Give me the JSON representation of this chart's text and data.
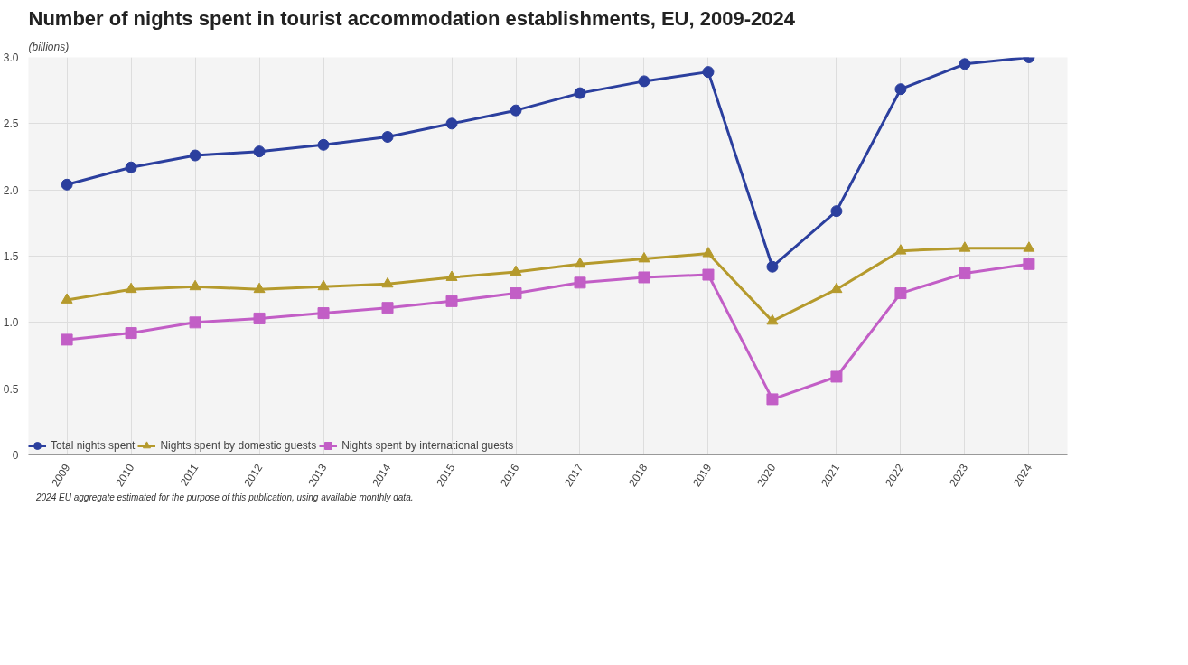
{
  "chart_data": {
    "type": "line",
    "title": "Number of nights spent in tourist accommodation establishments, EU, 2009-2024",
    "subtitle": "(billions)",
    "categories": [
      "2009",
      "2010",
      "2011",
      "2012",
      "2013",
      "2014",
      "2015",
      "2016",
      "2017",
      "2018",
      "2019",
      "2020",
      "2021",
      "2022",
      "2023",
      "2024"
    ],
    "series": [
      {
        "name": "Total nights spent",
        "color": "#2b3f9e",
        "marker": "circle",
        "values": [
          2.04,
          2.17,
          2.26,
          2.29,
          2.34,
          2.4,
          2.5,
          2.6,
          2.73,
          2.82,
          2.89,
          1.42,
          1.84,
          2.76,
          2.95,
          3.0
        ]
      },
      {
        "name": "Nights spent by domestic guests",
        "color": "#b59a2c",
        "marker": "triangle",
        "values": [
          1.17,
          1.25,
          1.27,
          1.25,
          1.27,
          1.29,
          1.34,
          1.38,
          1.44,
          1.48,
          1.52,
          1.01,
          1.25,
          1.54,
          1.56,
          1.56
        ]
      },
      {
        "name": "Nights spent by international guests",
        "color": "#c25ec6",
        "marker": "square",
        "values": [
          0.87,
          0.92,
          1.0,
          1.03,
          1.07,
          1.11,
          1.16,
          1.22,
          1.3,
          1.34,
          1.36,
          0.42,
          0.59,
          1.22,
          1.37,
          1.44
        ]
      }
    ],
    "ylim": [
      0,
      3.0
    ],
    "yticks": [
      0,
      0.5,
      {
        "value": 1,
        "label": "1.0"
      },
      1.5,
      {
        "value": 2,
        "label": "2.0"
      },
      2.5,
      {
        "value": 3,
        "label": "3.0"
      }
    ],
    "grid": true,
    "legend": "bottom",
    "line_style": "solid",
    "annotations": [
      "2024 EU aggregate estimated for the purpose of this publication, using available monthly data."
    ]
  }
}
